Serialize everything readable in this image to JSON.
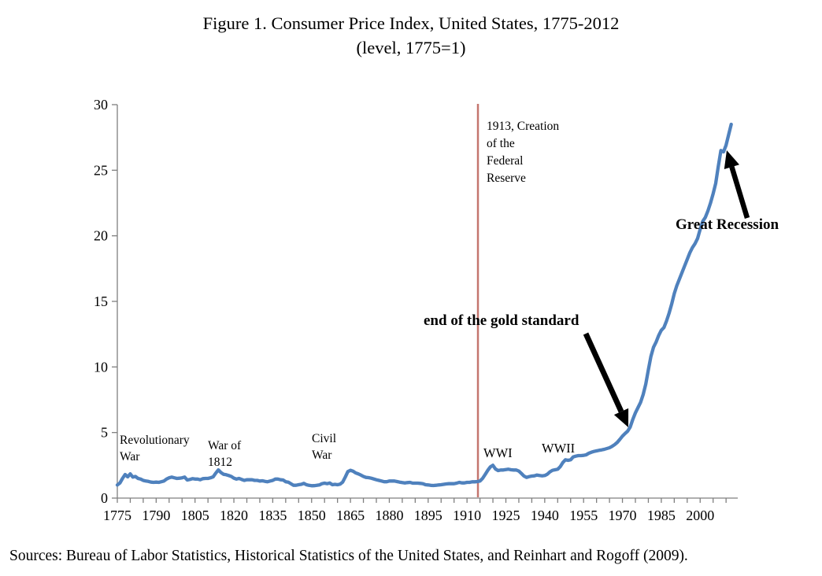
{
  "figure": {
    "title": "Figure 1. Consumer Price Index, United States, 1775-2012",
    "subtitle": "(level, 1775=1)",
    "sources": "Sources: Bureau of Labor Statistics, Historical Statistics of the United States, and Reinhart and Rogoff (2009)."
  },
  "annotations": {
    "fed": "1913, Creation\nof the\nFederal\nReserve",
    "rev_war": "Revolutionary\nWar",
    "war_1812": "War of\n1812",
    "civil_war": "Civil\nWar",
    "wwi": "WWI",
    "wwii": "WWII",
    "gold": "end of the gold standard",
    "great_recession": "Great Recession"
  },
  "colors": {
    "line": "#4f81bd",
    "event_line": "#c4766e",
    "axis": "#7f7f7f",
    "arrow": "#000000",
    "text": "#000000"
  },
  "chart_data": {
    "type": "line",
    "title": "Figure 1. Consumer Price Index, United States, 1775-2012",
    "subtitle": "(level, 1775=1)",
    "xlabel": "",
    "ylabel": "",
    "grid": false,
    "legend": "none",
    "x_range": [
      1775,
      2014
    ],
    "ylim": [
      0,
      30
    ],
    "y_ticks": [
      0,
      5,
      10,
      15,
      20,
      25,
      30
    ],
    "x_tick_minor_step": 5,
    "x_tick_labels": [
      1775,
      1790,
      1805,
      1820,
      1835,
      1850,
      1865,
      1880,
      1895,
      1910,
      1925,
      1940,
      1955,
      1970,
      1985,
      2000
    ],
    "event_line_year": 1913,
    "series": [
      {
        "name": "CPI level (1775=1)",
        "points": [
          [
            1775,
            1.0
          ],
          [
            1776,
            1.15
          ],
          [
            1777,
            1.5
          ],
          [
            1778,
            1.8
          ],
          [
            1779,
            1.62
          ],
          [
            1780,
            1.85
          ],
          [
            1781,
            1.6
          ],
          [
            1782,
            1.65
          ],
          [
            1783,
            1.5
          ],
          [
            1784,
            1.45
          ],
          [
            1785,
            1.35
          ],
          [
            1786,
            1.3
          ],
          [
            1787,
            1.27
          ],
          [
            1788,
            1.22
          ],
          [
            1789,
            1.2
          ],
          [
            1790,
            1.22
          ],
          [
            1791,
            1.2
          ],
          [
            1792,
            1.25
          ],
          [
            1793,
            1.3
          ],
          [
            1794,
            1.45
          ],
          [
            1795,
            1.55
          ],
          [
            1796,
            1.6
          ],
          [
            1797,
            1.55
          ],
          [
            1798,
            1.5
          ],
          [
            1799,
            1.52
          ],
          [
            1800,
            1.55
          ],
          [
            1801,
            1.6
          ],
          [
            1802,
            1.38
          ],
          [
            1803,
            1.42
          ],
          [
            1804,
            1.48
          ],
          [
            1805,
            1.45
          ],
          [
            1806,
            1.45
          ],
          [
            1807,
            1.4
          ],
          [
            1808,
            1.48
          ],
          [
            1809,
            1.5
          ],
          [
            1810,
            1.5
          ],
          [
            1811,
            1.55
          ],
          [
            1812,
            1.62
          ],
          [
            1813,
            1.9
          ],
          [
            1814,
            2.15
          ],
          [
            1815,
            1.95
          ],
          [
            1816,
            1.82
          ],
          [
            1817,
            1.78
          ],
          [
            1818,
            1.72
          ],
          [
            1819,
            1.65
          ],
          [
            1820,
            1.52
          ],
          [
            1821,
            1.45
          ],
          [
            1822,
            1.5
          ],
          [
            1823,
            1.42
          ],
          [
            1824,
            1.35
          ],
          [
            1825,
            1.4
          ],
          [
            1826,
            1.4
          ],
          [
            1827,
            1.4
          ],
          [
            1828,
            1.35
          ],
          [
            1829,
            1.35
          ],
          [
            1830,
            1.3
          ],
          [
            1831,
            1.32
          ],
          [
            1832,
            1.28
          ],
          [
            1833,
            1.25
          ],
          [
            1834,
            1.3
          ],
          [
            1835,
            1.35
          ],
          [
            1836,
            1.45
          ],
          [
            1837,
            1.45
          ],
          [
            1838,
            1.4
          ],
          [
            1839,
            1.38
          ],
          [
            1840,
            1.25
          ],
          [
            1841,
            1.22
          ],
          [
            1842,
            1.1
          ],
          [
            1843,
            0.98
          ],
          [
            1844,
            0.98
          ],
          [
            1845,
            1.02
          ],
          [
            1846,
            1.05
          ],
          [
            1847,
            1.12
          ],
          [
            1848,
            1.02
          ],
          [
            1849,
            0.97
          ],
          [
            1850,
            0.94
          ],
          [
            1851,
            0.95
          ],
          [
            1852,
            0.97
          ],
          [
            1853,
            1.0
          ],
          [
            1854,
            1.1
          ],
          [
            1855,
            1.14
          ],
          [
            1856,
            1.1
          ],
          [
            1857,
            1.15
          ],
          [
            1858,
            1.02
          ],
          [
            1859,
            1.05
          ],
          [
            1860,
            1.02
          ],
          [
            1861,
            1.06
          ],
          [
            1862,
            1.22
          ],
          [
            1863,
            1.6
          ],
          [
            1864,
            2.02
          ],
          [
            1865,
            2.12
          ],
          [
            1866,
            2.05
          ],
          [
            1867,
            1.92
          ],
          [
            1868,
            1.85
          ],
          [
            1869,
            1.76
          ],
          [
            1870,
            1.65
          ],
          [
            1871,
            1.58
          ],
          [
            1872,
            1.56
          ],
          [
            1873,
            1.52
          ],
          [
            1874,
            1.46
          ],
          [
            1875,
            1.4
          ],
          [
            1876,
            1.35
          ],
          [
            1877,
            1.3
          ],
          [
            1878,
            1.25
          ],
          [
            1879,
            1.25
          ],
          [
            1880,
            1.3
          ],
          [
            1881,
            1.3
          ],
          [
            1882,
            1.3
          ],
          [
            1883,
            1.26
          ],
          [
            1884,
            1.22
          ],
          [
            1885,
            1.18
          ],
          [
            1886,
            1.15
          ],
          [
            1887,
            1.18
          ],
          [
            1888,
            1.2
          ],
          [
            1889,
            1.14
          ],
          [
            1890,
            1.14
          ],
          [
            1891,
            1.14
          ],
          [
            1892,
            1.12
          ],
          [
            1893,
            1.1
          ],
          [
            1894,
            1.02
          ],
          [
            1895,
            1.0
          ],
          [
            1896,
            0.97
          ],
          [
            1897,
            0.96
          ],
          [
            1898,
            0.98
          ],
          [
            1899,
            1.0
          ],
          [
            1900,
            1.02
          ],
          [
            1901,
            1.05
          ],
          [
            1902,
            1.08
          ],
          [
            1903,
            1.1
          ],
          [
            1904,
            1.1
          ],
          [
            1905,
            1.1
          ],
          [
            1906,
            1.14
          ],
          [
            1907,
            1.2
          ],
          [
            1908,
            1.16
          ],
          [
            1909,
            1.16
          ],
          [
            1910,
            1.2
          ],
          [
            1911,
            1.2
          ],
          [
            1912,
            1.24
          ],
          [
            1913,
            1.24
          ],
          [
            1914,
            1.26
          ],
          [
            1915,
            1.3
          ],
          [
            1916,
            1.5
          ],
          [
            1917,
            1.8
          ],
          [
            1918,
            2.12
          ],
          [
            1919,
            2.38
          ],
          [
            1920,
            2.5
          ],
          [
            1921,
            2.22
          ],
          [
            1922,
            2.1
          ],
          [
            1923,
            2.14
          ],
          [
            1924,
            2.14
          ],
          [
            1925,
            2.18
          ],
          [
            1926,
            2.2
          ],
          [
            1927,
            2.16
          ],
          [
            1928,
            2.14
          ],
          [
            1929,
            2.14
          ],
          [
            1930,
            2.06
          ],
          [
            1931,
            1.88
          ],
          [
            1932,
            1.68
          ],
          [
            1933,
            1.58
          ],
          [
            1934,
            1.64
          ],
          [
            1935,
            1.68
          ],
          [
            1936,
            1.7
          ],
          [
            1937,
            1.76
          ],
          [
            1938,
            1.72
          ],
          [
            1939,
            1.7
          ],
          [
            1940,
            1.72
          ],
          [
            1941,
            1.82
          ],
          [
            1942,
            2.0
          ],
          [
            1943,
            2.12
          ],
          [
            1944,
            2.16
          ],
          [
            1945,
            2.2
          ],
          [
            1946,
            2.4
          ],
          [
            1947,
            2.72
          ],
          [
            1948,
            2.92
          ],
          [
            1949,
            2.88
          ],
          [
            1950,
            2.92
          ],
          [
            1951,
            3.14
          ],
          [
            1952,
            3.2
          ],
          [
            1953,
            3.24
          ],
          [
            1954,
            3.24
          ],
          [
            1955,
            3.26
          ],
          [
            1956,
            3.3
          ],
          [
            1957,
            3.42
          ],
          [
            1958,
            3.5
          ],
          [
            1959,
            3.56
          ],
          [
            1960,
            3.6
          ],
          [
            1961,
            3.64
          ],
          [
            1962,
            3.68
          ],
          [
            1963,
            3.72
          ],
          [
            1964,
            3.78
          ],
          [
            1965,
            3.84
          ],
          [
            1966,
            3.95
          ],
          [
            1967,
            4.08
          ],
          [
            1968,
            4.25
          ],
          [
            1969,
            4.48
          ],
          [
            1970,
            4.72
          ],
          [
            1971,
            4.92
          ],
          [
            1972,
            5.1
          ],
          [
            1973,
            5.42
          ],
          [
            1974,
            6.0
          ],
          [
            1975,
            6.5
          ],
          [
            1976,
            6.9
          ],
          [
            1977,
            7.3
          ],
          [
            1978,
            7.9
          ],
          [
            1979,
            8.7
          ],
          [
            1980,
            9.8
          ],
          [
            1981,
            10.8
          ],
          [
            1982,
            11.5
          ],
          [
            1983,
            11.9
          ],
          [
            1984,
            12.4
          ],
          [
            1985,
            12.8
          ],
          [
            1986,
            13.0
          ],
          [
            1987,
            13.5
          ],
          [
            1988,
            14.1
          ],
          [
            1989,
            14.8
          ],
          [
            1990,
            15.6
          ],
          [
            1991,
            16.2
          ],
          [
            1992,
            16.7
          ],
          [
            1993,
            17.2
          ],
          [
            1994,
            17.7
          ],
          [
            1995,
            18.2
          ],
          [
            1996,
            18.7
          ],
          [
            1997,
            19.1
          ],
          [
            1998,
            19.4
          ],
          [
            1999,
            19.8
          ],
          [
            2000,
            20.5
          ],
          [
            2001,
            21.1
          ],
          [
            2002,
            21.4
          ],
          [
            2003,
            21.9
          ],
          [
            2004,
            22.5
          ],
          [
            2005,
            23.2
          ],
          [
            2006,
            24.0
          ],
          [
            2007,
            25.3
          ],
          [
            2008,
            26.5
          ],
          [
            2009,
            26.4
          ],
          [
            2010,
            26.9
          ],
          [
            2011,
            27.7
          ],
          [
            2012,
            28.5
          ]
        ]
      }
    ],
    "annotations": [
      {
        "text": "Revolutionary War",
        "year": 1778
      },
      {
        "text": "War of 1812",
        "year": 1814
      },
      {
        "text": "Civil War",
        "year": 1864
      },
      {
        "text": "1913, Creation of the Federal Reserve",
        "year": 1913
      },
      {
        "text": "WWI",
        "year": 1918
      },
      {
        "text": "WWII",
        "year": 1943
      },
      {
        "text": "end of the gold standard",
        "year": 1971
      },
      {
        "text": "Great Recession",
        "year": 2009
      }
    ]
  }
}
